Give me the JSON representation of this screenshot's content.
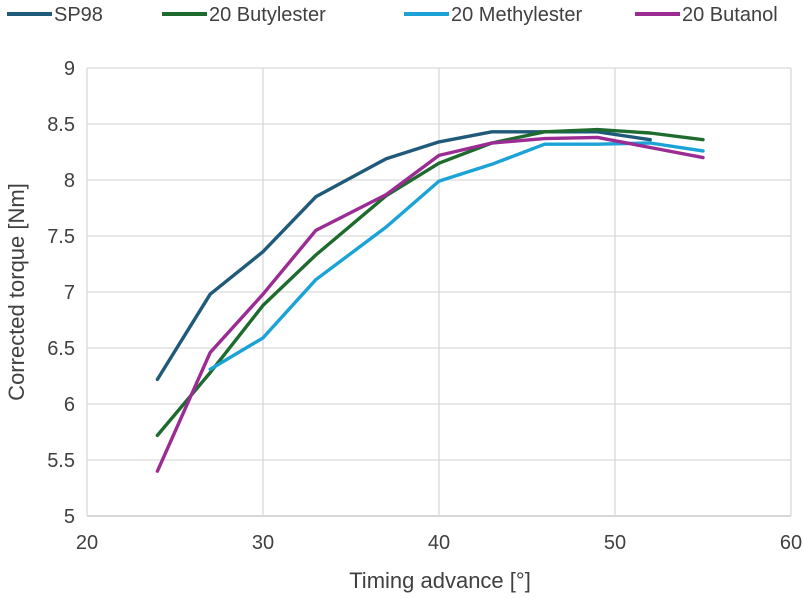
{
  "chart_data": {
    "type": "line",
    "xlabel": "Timing advance [°]",
    "ylabel": "Corrected torque [Nm]",
    "xlim": [
      20,
      60
    ],
    "ylim": [
      5,
      9
    ],
    "x_ticks": [
      "20",
      "30",
      "40",
      "50",
      "60"
    ],
    "y_ticks": [
      "5",
      "5.5",
      "6",
      "6.5",
      "7",
      "7.5",
      "8",
      "8.5",
      "9"
    ],
    "grid": true,
    "legend_position": "top",
    "series": [
      {
        "name": "SP98",
        "color": "#1f5a7a",
        "points": [
          [
            24,
            6.22
          ],
          [
            27,
            6.98
          ],
          [
            30,
            7.36
          ],
          [
            33,
            7.85
          ],
          [
            37,
            8.19
          ],
          [
            40,
            8.34
          ],
          [
            43,
            8.43
          ],
          [
            46,
            8.43
          ],
          [
            49,
            8.43
          ],
          [
            52,
            8.36
          ]
        ]
      },
      {
        "name": "20 Butylester",
        "color": "#1e6b2e",
        "points": [
          [
            24,
            5.72
          ],
          [
            27,
            6.28
          ],
          [
            30,
            6.88
          ],
          [
            33,
            7.33
          ],
          [
            37,
            7.86
          ],
          [
            40,
            8.15
          ],
          [
            43,
            8.33
          ],
          [
            46,
            8.43
          ],
          [
            49,
            8.45
          ],
          [
            52,
            8.42
          ],
          [
            55,
            8.36
          ]
        ]
      },
      {
        "name": "20 Methylester",
        "color": "#1ba3d8",
        "points": [
          [
            27,
            6.31
          ],
          [
            30,
            6.59
          ],
          [
            33,
            7.11
          ],
          [
            37,
            7.58
          ],
          [
            40,
            7.99
          ],
          [
            43,
            8.14
          ],
          [
            46,
            8.32
          ],
          [
            49,
            8.32
          ],
          [
            52,
            8.33
          ],
          [
            55,
            8.26
          ]
        ]
      },
      {
        "name": "20 Butanol",
        "color": "#9a2c93",
        "points": [
          [
            24,
            5.4
          ],
          [
            27,
            6.46
          ],
          [
            30,
            6.98
          ],
          [
            33,
            7.55
          ],
          [
            37,
            7.87
          ],
          [
            40,
            8.22
          ],
          [
            43,
            8.33
          ],
          [
            46,
            8.37
          ],
          [
            49,
            8.38
          ],
          [
            52,
            8.29
          ],
          [
            55,
            8.2
          ]
        ]
      }
    ]
  }
}
